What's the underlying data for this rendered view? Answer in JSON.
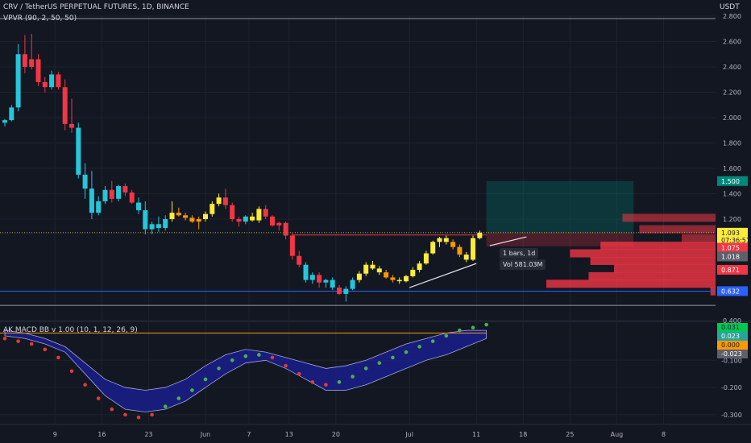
{
  "header": {
    "symbol_title": "CRV / TetherUS PERPETUAL FUTURES, 1D, BINANCE",
    "vpvr_label": "VPVR (90, 2, 50, 50)",
    "currency": "USDT"
  },
  "tooltip": {
    "bars_label": "1 bars, 1d",
    "vol_label": "Vol 581.03M"
  },
  "colors": {
    "background": "#131722",
    "grid": "#1e222d",
    "bull": "#26c6da",
    "bear": "#f23645",
    "yellow": "#ffeb3b",
    "orange": "#ff9800",
    "blue_line": "#2962ff",
    "gray_line": "#9598a1",
    "band_fill": "#1a1f8c",
    "macd_green": "#26a69a",
    "macd_red": "#e53935",
    "macd_signal": "#ff9800"
  },
  "chart_data": [
    {
      "type": "candlestick",
      "title": "CRV / TetherUS PERPETUAL FUTURES, 1D, BINANCE",
      "ylabel": "USDT",
      "ylim": [
        0.4,
        2.8
      ],
      "y_ticks": [
        "2.800",
        "2.600",
        "2.400",
        "2.200",
        "2.000",
        "1.800",
        "1.600",
        "1.400",
        "1.200",
        "0.400"
      ],
      "x_ticks": [
        "9",
        "16",
        "23",
        "Jun",
        "7",
        "13",
        "20",
        "Jul",
        "11",
        "18",
        "25",
        "Aug",
        "8"
      ],
      "x_tick_pos": [
        7.5,
        14.5,
        21.5,
        30,
        36.5,
        42.5,
        49.5,
        60.5,
        70.5,
        77.5,
        84.5,
        91.5,
        98.5
      ],
      "grid": true,
      "horizontal_lines": [
        {
          "value": 2.78,
          "color": "#9598a1"
        },
        {
          "value": 0.632,
          "color": "#2962ff"
        },
        {
          "value": 0.52,
          "color": "#9598a1"
        }
      ],
      "price_badges": [
        {
          "label": "1.500",
          "value": 1.5,
          "bg": "#00897b",
          "fg": "#ffffff"
        },
        {
          "label": "1.093",
          "value": 1.093,
          "bg": "#ffeb3b",
          "fg": "#131722"
        },
        {
          "label": "07:36:51",
          "value": 1.035,
          "bg": "#ffeb3b",
          "fg": "#131722"
        },
        {
          "label": "1.075",
          "value": 0.975,
          "bg": "#f23645",
          "fg": "#ffffff"
        },
        {
          "label": "1.018",
          "value": 0.905,
          "bg": "#5d606b",
          "fg": "#ffffff"
        },
        {
          "label": "0.871",
          "value": 0.8,
          "bg": "#f23645",
          "fg": "#ffffff"
        },
        {
          "label": "0.632",
          "value": 0.632,
          "bg": "#2962ff",
          "fg": "#ffffff"
        }
      ],
      "candles": [
        [
          1.96,
          1.99,
          1.93,
          1.98
        ],
        [
          1.98,
          2.1,
          1.97,
          2.08
        ],
        [
          2.08,
          2.58,
          2.05,
          2.5
        ],
        [
          2.5,
          2.65,
          2.35,
          2.4
        ],
        [
          2.4,
          2.66,
          2.38,
          2.46
        ],
        [
          2.46,
          2.5,
          2.25,
          2.28
        ],
        [
          2.28,
          2.32,
          2.2,
          2.24
        ],
        [
          2.24,
          2.37,
          2.22,
          2.34
        ],
        [
          2.34,
          2.36,
          2.22,
          2.24
        ],
        [
          2.24,
          2.3,
          1.9,
          1.95
        ],
        [
          1.95,
          2.15,
          1.88,
          1.92
        ],
        [
          1.92,
          1.96,
          1.52,
          1.55
        ],
        [
          1.55,
          1.64,
          1.36,
          1.44
        ],
        [
          1.44,
          1.58,
          1.2,
          1.25
        ],
        [
          1.25,
          1.38,
          1.23,
          1.34
        ],
        [
          1.34,
          1.46,
          1.32,
          1.43
        ],
        [
          1.43,
          1.5,
          1.33,
          1.36
        ],
        [
          1.36,
          1.47,
          1.34,
          1.46
        ],
        [
          1.46,
          1.48,
          1.38,
          1.41
        ],
        [
          1.41,
          1.43,
          1.32,
          1.33
        ],
        [
          1.33,
          1.37,
          1.24,
          1.27
        ],
        [
          1.27,
          1.34,
          1.08,
          1.12
        ],
        [
          1.12,
          1.18,
          1.08,
          1.16
        ],
        [
          1.16,
          1.22,
          1.1,
          1.13
        ],
        [
          1.13,
          1.23,
          1.11,
          1.2
        ],
        [
          1.2,
          1.34,
          1.18,
          1.25
        ],
        [
          1.25,
          1.29,
          1.22,
          1.23
        ],
        [
          1.23,
          1.25,
          1.19,
          1.21
        ],
        [
          1.21,
          1.23,
          1.17,
          1.18
        ],
        [
          1.18,
          1.22,
          1.12,
          1.2
        ],
        [
          1.2,
          1.26,
          1.18,
          1.24
        ],
        [
          1.24,
          1.34,
          1.22,
          1.32
        ],
        [
          1.32,
          1.4,
          1.3,
          1.37
        ],
        [
          1.37,
          1.44,
          1.28,
          1.31
        ],
        [
          1.31,
          1.33,
          1.18,
          1.2
        ],
        [
          1.2,
          1.22,
          1.14,
          1.18
        ],
        [
          1.18,
          1.23,
          1.16,
          1.22
        ],
        [
          1.22,
          1.25,
          1.18,
          1.19
        ],
        [
          1.19,
          1.3,
          1.17,
          1.28
        ],
        [
          1.28,
          1.31,
          1.2,
          1.22
        ],
        [
          1.22,
          1.23,
          1.14,
          1.15
        ],
        [
          1.15,
          1.18,
          1.11,
          1.17
        ],
        [
          1.17,
          1.18,
          1.04,
          1.07
        ],
        [
          1.07,
          1.09,
          0.88,
          0.91
        ],
        [
          0.91,
          0.95,
          0.82,
          0.84
        ],
        [
          0.84,
          0.86,
          0.7,
          0.72
        ],
        [
          0.72,
          0.78,
          0.69,
          0.76
        ],
        [
          0.76,
          0.78,
          0.66,
          0.7
        ],
        [
          0.7,
          0.73,
          0.66,
          0.72
        ],
        [
          0.72,
          0.74,
          0.64,
          0.66
        ],
        [
          0.66,
          0.68,
          0.6,
          0.61
        ],
        [
          0.61,
          0.67,
          0.55,
          0.65
        ],
        [
          0.65,
          0.74,
          0.64,
          0.72
        ],
        [
          0.72,
          0.79,
          0.7,
          0.77
        ],
        [
          0.77,
          0.86,
          0.75,
          0.84
        ],
        [
          0.84,
          0.87,
          0.8,
          0.81
        ],
        [
          0.81,
          0.83,
          0.76,
          0.78
        ],
        [
          0.78,
          0.8,
          0.73,
          0.74
        ],
        [
          0.74,
          0.76,
          0.7,
          0.72
        ],
        [
          0.72,
          0.74,
          0.69,
          0.71
        ],
        [
          0.71,
          0.76,
          0.7,
          0.75
        ],
        [
          0.75,
          0.82,
          0.74,
          0.8
        ],
        [
          0.8,
          0.87,
          0.78,
          0.85
        ],
        [
          0.85,
          0.95,
          0.84,
          0.93
        ],
        [
          0.93,
          1.03,
          0.92,
          1.02
        ],
        [
          1.02,
          1.06,
          0.98,
          1.05
        ],
        [
          1.05,
          1.07,
          1.0,
          1.02
        ],
        [
          1.02,
          1.04,
          0.96,
          0.98
        ],
        [
          0.98,
          1.0,
          0.9,
          0.92
        ],
        [
          0.92,
          0.94,
          0.86,
          0.88
        ],
        [
          0.88,
          1.07,
          0.87,
          1.05
        ],
        [
          1.05,
          1.11,
          1.04,
          1.093
        ]
      ],
      "candle_x_start": 0,
      "candle_colors": [
        "bull",
        "bull",
        "bull",
        "bear",
        "bear",
        "bear",
        "bear",
        "bull",
        "bear",
        "bear",
        "bear",
        "bull",
        "bull",
        "bull",
        "bull",
        "bull",
        "bear",
        "bull",
        "bear",
        "bear",
        "bull",
        "bull",
        "bull",
        "bull",
        "bull",
        "yellow",
        "orange",
        "orange",
        "orange",
        "orange",
        "yellow",
        "yellow",
        "yellow",
        "bear",
        "bear",
        "bear",
        "bull",
        "yellow",
        "yellow",
        "bear",
        "bear",
        "bear",
        "bear",
        "bear",
        "bear",
        "bull",
        "bull",
        "bear",
        "bull",
        "bull",
        "bear",
        "bull",
        "bull",
        "yellow",
        "yellow",
        "yellow",
        "yellow",
        "orange",
        "orange",
        "yellow",
        "yellow",
        "yellow",
        "yellow",
        "yellow",
        "yellow",
        "yellow",
        "yellow",
        "orange",
        "orange",
        "yellow",
        "yellow",
        "yellow"
      ],
      "trendlines": [
        {
          "x1": 60.5,
          "y1": 0.66,
          "x2": 70.5,
          "y2": 0.85
        },
        {
          "x1": 72.5,
          "y1": 0.99,
          "x2": 78,
          "y2": 1.06
        }
      ],
      "reference_line": {
        "from_x": 43,
        "to_x": 72,
        "value": 1.075
      },
      "position_box": {
        "x1": 72,
        "x2": 94,
        "top": 1.5,
        "entry": 1.093,
        "bottom": 0.985
      },
      "volume_profile": [
        {
          "value": 1.21,
          "length": 0.55
        },
        {
          "value": 1.12,
          "length": 0.45
        },
        {
          "value": 1.05,
          "length": 0.2
        },
        {
          "value": 0.99,
          "length": 0.68
        },
        {
          "value": 0.93,
          "length": 0.86
        },
        {
          "value": 0.87,
          "length": 0.74
        },
        {
          "value": 0.81,
          "length": 0.6
        },
        {
          "value": 0.75,
          "length": 0.75
        },
        {
          "value": 0.69,
          "length": 1.0
        },
        {
          "value": 0.63,
          "length": 0.03
        }
      ]
    },
    {
      "type": "line",
      "title": "AK MACD BB v 1.00 (10, 1, 12, 26, 9)",
      "ylim": [
        -0.33,
        0.04
      ],
      "y_ticks": [
        "-0.100",
        "-0.200",
        "-0.300"
      ],
      "value_badges": [
        {
          "label": "0.031",
          "value": 0.031,
          "bg": "#00c853",
          "fg": "#131722"
        },
        {
          "label": "0.023",
          "value": 0.023,
          "bg": "#26a69a",
          "fg": "#ffffff"
        },
        {
          "label": "0.000",
          "value": 0.0,
          "bg": "#ff9800",
          "fg": "#131722"
        },
        {
          "label": "-0.023",
          "value": -0.023,
          "bg": "#5d606b",
          "fg": "#ffffff"
        }
      ],
      "zero_line": 0.0,
      "band_x": [
        0,
        3,
        6,
        9,
        12,
        15,
        18,
        21,
        24,
        27,
        30,
        33,
        36,
        39,
        42,
        45,
        48,
        51,
        54,
        57,
        60,
        63,
        66,
        69,
        72
      ],
      "band_upper": [
        0.01,
        0.0,
        -0.02,
        -0.05,
        -0.11,
        -0.17,
        -0.2,
        -0.21,
        -0.2,
        -0.17,
        -0.12,
        -0.08,
        -0.06,
        -0.07,
        -0.09,
        -0.11,
        -0.13,
        -0.12,
        -0.1,
        -0.07,
        -0.04,
        -0.02,
        0.0,
        0.01,
        0.01
      ],
      "band_lower": [
        -0.01,
        -0.02,
        -0.04,
        -0.07,
        -0.15,
        -0.23,
        -0.28,
        -0.29,
        -0.28,
        -0.25,
        -0.2,
        -0.15,
        -0.11,
        -0.1,
        -0.13,
        -0.17,
        -0.21,
        -0.21,
        -0.19,
        -0.16,
        -0.13,
        -0.1,
        -0.08,
        -0.05,
        -0.02
      ],
      "macd_x": [
        0,
        2,
        4,
        6,
        8,
        10,
        12,
        14,
        16,
        18,
        20,
        22,
        24,
        26,
        28,
        30,
        32,
        34,
        36,
        38,
        40,
        42,
        44,
        46,
        48,
        50,
        52,
        54,
        56,
        58,
        60,
        62,
        64,
        66,
        68,
        70,
        72
      ],
      "macd_values": [
        -0.02,
        -0.03,
        -0.04,
        -0.06,
        -0.09,
        -0.14,
        -0.19,
        -0.24,
        -0.28,
        -0.3,
        -0.31,
        -0.3,
        -0.27,
        -0.24,
        -0.21,
        -0.17,
        -0.13,
        -0.1,
        -0.085,
        -0.08,
        -0.09,
        -0.12,
        -0.15,
        -0.18,
        -0.19,
        -0.18,
        -0.16,
        -0.13,
        -0.11,
        -0.09,
        -0.07,
        -0.05,
        -0.03,
        -0.01,
        0.01,
        0.02,
        0.031
      ],
      "macd_trend": [
        "red",
        "red",
        "red",
        "red",
        "red",
        "red",
        "red",
        "red",
        "red",
        "red",
        "red",
        "red",
        "green",
        "green",
        "green",
        "green",
        "green",
        "green",
        "green",
        "green",
        "red",
        "red",
        "red",
        "red",
        "red",
        "green",
        "green",
        "green",
        "green",
        "green",
        "green",
        "green",
        "green",
        "green",
        "green",
        "green",
        "green"
      ]
    }
  ]
}
